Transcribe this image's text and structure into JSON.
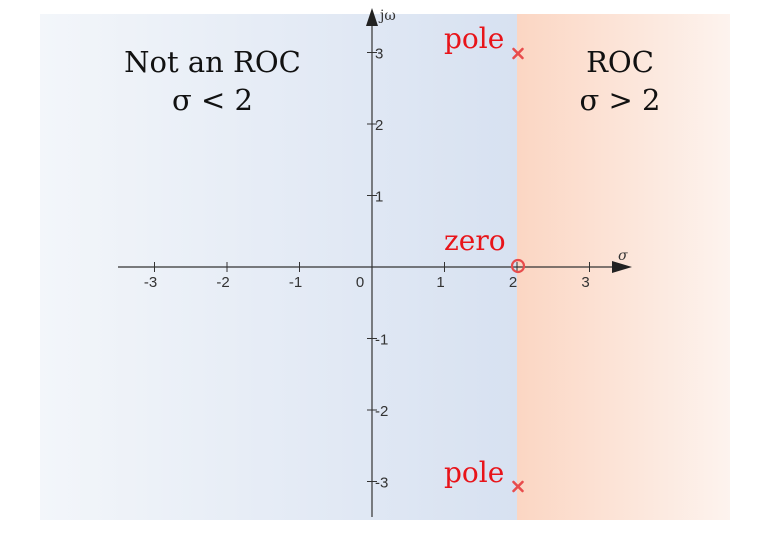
{
  "chart_data": {
    "type": "pole-zero-plot",
    "x_axis_label": "σ",
    "y_axis_label": "jω",
    "xlim": [
      -3.5,
      3.5
    ],
    "ylim": [
      -3.5,
      3.3
    ],
    "x_ticks": [
      -3,
      -2,
      -1,
      0,
      1,
      2,
      3
    ],
    "y_ticks": [
      -3,
      -2,
      -1,
      1,
      2,
      3
    ],
    "x_tick_labels": [
      "-3",
      "-2",
      "-1",
      "0",
      "1",
      "2",
      "3"
    ],
    "y_tick_labels": [
      "-3",
      "-2",
      "-1",
      "1",
      "2",
      "3"
    ],
    "roc_boundary_sigma": 2,
    "poles": [
      {
        "re": 2,
        "im": 3
      },
      {
        "re": 2,
        "im": -3
      }
    ],
    "zeros": [
      {
        "re": 2,
        "im": 0
      }
    ],
    "regions": {
      "left": {
        "title": "Not an ROC",
        "condition": "σ < 2",
        "color": "#dde6f3"
      },
      "right": {
        "title": "ROC",
        "condition": "σ > 2",
        "color": "#fbd9c9"
      }
    },
    "annotations": {
      "pole_top": "pole",
      "pole_bottom": "pole",
      "zero": "zero"
    },
    "marker_color": "#e84c4c"
  }
}
